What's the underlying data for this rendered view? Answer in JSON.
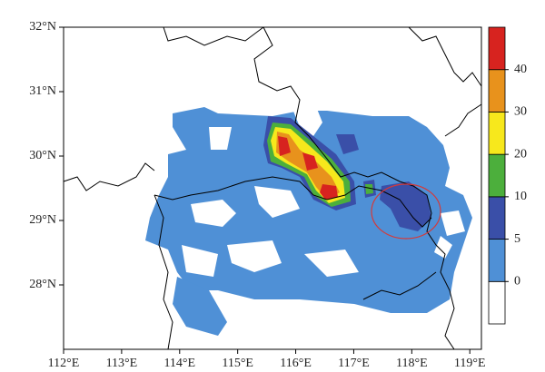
{
  "map": {
    "xlim": [
      112,
      119.2
    ],
    "ylim": [
      27,
      32
    ],
    "xticks": [
      {
        "value": 112,
        "label": "112°E"
      },
      {
        "value": 113,
        "label": "113°E"
      },
      {
        "value": 114,
        "label": "114°E"
      },
      {
        "value": 115,
        "label": "115°E"
      },
      {
        "value": 116,
        "label": "116°E"
      },
      {
        "value": 117,
        "label": "117°E"
      },
      {
        "value": 118,
        "label": "118°E"
      },
      {
        "value": 119,
        "label": "119°E"
      }
    ],
    "yticks": [
      {
        "value": 28,
        "label": "28°N"
      },
      {
        "value": 29,
        "label": "29°N"
      },
      {
        "value": 30,
        "label": "30°N"
      },
      {
        "value": 31,
        "label": "31°N"
      },
      {
        "value": 32,
        "label": "32°N"
      }
    ],
    "colorbar": {
      "levels": [
        0,
        5,
        10,
        20,
        30,
        40
      ],
      "colors": [
        "#ffffff",
        "#4f90d6",
        "#3a4fa8",
        "#4caf3c",
        "#f7e81c",
        "#e8921c",
        "#d7231f"
      ]
    }
  }
}
